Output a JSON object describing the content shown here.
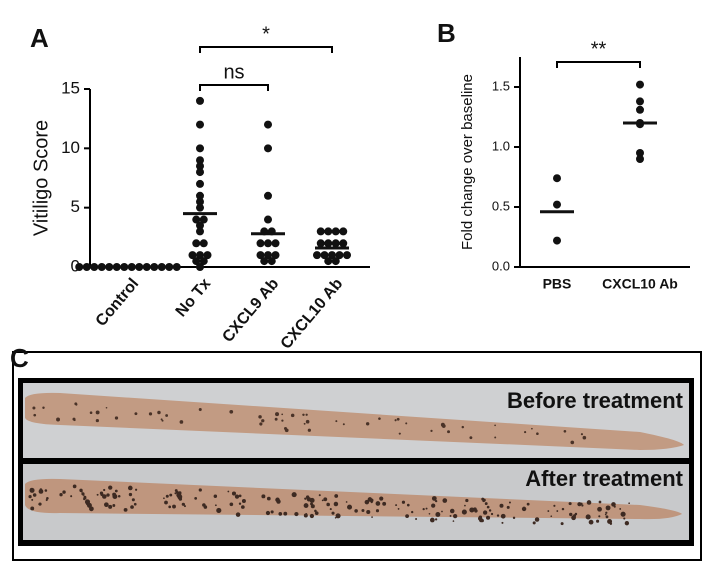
{
  "chart_data": [
    {
      "type": "strip",
      "label": "A",
      "y_label": "Vitiligo Score",
      "categories": [
        "Control",
        "No Tx",
        "CXCL9 Ab",
        "CXCL10 Ab"
      ],
      "points": [
        [
          0,
          0,
          0,
          0,
          0,
          0,
          0,
          0,
          0,
          0,
          0,
          0,
          0,
          0
        ],
        [
          14,
          12,
          10,
          9,
          8.5,
          8,
          7,
          6,
          5.5,
          5,
          4,
          4,
          3.5,
          3,
          2,
          2,
          1,
          1,
          1,
          0.5,
          0.5,
          0
        ],
        [
          12,
          10,
          6,
          4,
          3,
          3,
          2,
          2,
          2,
          1,
          1,
          1,
          0.5,
          0.5
        ],
        [
          3,
          3,
          3,
          3,
          2,
          2,
          2,
          2,
          1,
          1,
          1,
          1,
          1,
          0.5,
          0.5
        ]
      ],
      "means": [
        0,
        4.5,
        2.8,
        1.6
      ],
      "color": "#111111",
      "ylim": [
        0,
        15
      ],
      "yticks": [
        0,
        5,
        10,
        15
      ],
      "annotations": [
        {
          "text": "ns",
          "between": [
            "No Tx",
            "CXCL9 Ab"
          ]
        },
        {
          "text": "*",
          "between": [
            "No Tx",
            "CXCL10 Ab"
          ]
        }
      ]
    },
    {
      "type": "strip",
      "label": "B",
      "y_label": "Fold change over baseline",
      "categories": [
        "PBS",
        "CXCL10 Ab"
      ],
      "points": [
        [
          0.74,
          0.52,
          0.22
        ],
        [
          1.52,
          1.38,
          1.31,
          1.2,
          1.19,
          0.95,
          0.9
        ]
      ],
      "means": [
        0.46,
        1.2
      ],
      "color": "#111111",
      "ylim": [
        0,
        1.75
      ],
      "yticks": [
        {
          "value": 0,
          "label": "0.0"
        },
        0.5,
        {
          "value": 1,
          "label": "1.0"
        },
        1.5
      ],
      "annotations": [
        {
          "text": "**",
          "between": [
            "PBS",
            "CXCL10 Ab"
          ]
        }
      ]
    }
  ],
  "photo_panel": {
    "label": "C",
    "captions": [
      "Before treatment",
      "After treatment"
    ]
  }
}
